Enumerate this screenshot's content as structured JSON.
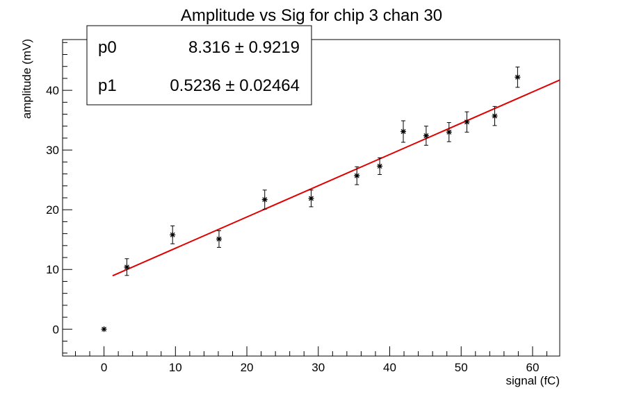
{
  "chart_data": {
    "type": "scatter",
    "title": "Amplitude vs Sig for chip 3 chan 30",
    "xlabel": "signal (fC)",
    "ylabel": "amplitude (mV)",
    "xlim": [
      -5.8,
      63.8
    ],
    "ylim": [
      -4.5,
      48.5
    ],
    "x_ticks": [
      0,
      10,
      20,
      30,
      40,
      50,
      60
    ],
    "y_ticks": [
      0,
      10,
      20,
      30,
      40
    ],
    "grid": false,
    "series": [
      {
        "marker": "star",
        "color": "#000000",
        "points": [
          {
            "x": 0.0,
            "y": 0.0,
            "err": 0
          },
          {
            "x": 3.2,
            "y": 10.4,
            "err": 1.4
          },
          {
            "x": 9.6,
            "y": 15.8,
            "err": 1.5
          },
          {
            "x": 16.1,
            "y": 15.1,
            "err": 1.4
          },
          {
            "x": 22.5,
            "y": 21.7,
            "err": 1.6
          },
          {
            "x": 29.0,
            "y": 21.9,
            "err": 1.4
          },
          {
            "x": 35.4,
            "y": 25.7,
            "err": 1.5
          },
          {
            "x": 38.6,
            "y": 27.3,
            "err": 1.4
          },
          {
            "x": 41.9,
            "y": 33.1,
            "err": 1.8
          },
          {
            "x": 45.1,
            "y": 32.4,
            "err": 1.6
          },
          {
            "x": 48.3,
            "y": 33.0,
            "err": 1.6
          },
          {
            "x": 50.8,
            "y": 34.7,
            "err": 1.7
          },
          {
            "x": 54.7,
            "y": 35.7,
            "err": 1.6
          },
          {
            "x": 57.9,
            "y": 42.2,
            "err": 1.7
          }
        ]
      }
    ],
    "fit": {
      "color": "#e00000",
      "x_range": [
        1.2,
        63.8
      ],
      "p0_value": 8.316,
      "p1_value": 0.5236
    },
    "stats_box": {
      "placement": "top-left",
      "rows": [
        {
          "name": "p0",
          "value": "8.316",
          "error": "0.9219"
        },
        {
          "name": "p1",
          "value": "0.5236",
          "error": "0.02464"
        }
      ],
      "pm_symbol": "±"
    }
  }
}
